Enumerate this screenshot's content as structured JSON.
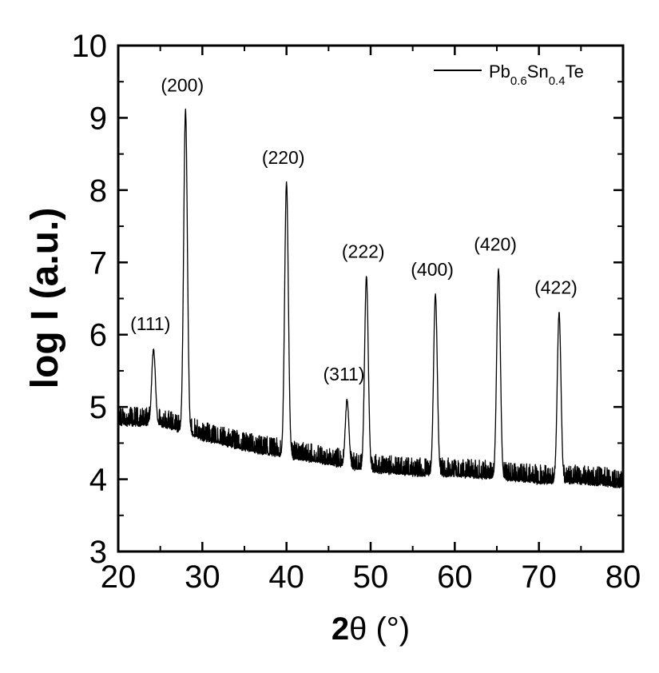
{
  "chart_data": {
    "type": "line",
    "xlabel": {
      "bold_part": "2",
      "rest": "θ (°)"
    },
    "ylabel": "log I (a.u.)",
    "xlim": [
      20,
      80
    ],
    "ylim": [
      3,
      10
    ],
    "x_ticks": [
      "20",
      "30",
      "40",
      "50",
      "60",
      "70",
      "80"
    ],
    "y_ticks": [
      "3",
      "4",
      "5",
      "6",
      "7",
      "8",
      "9",
      "10"
    ],
    "grid": false,
    "legend": {
      "position": "top-right",
      "entry": {
        "base1": "Pb",
        "sub1": "0.6",
        "base2": "Sn",
        "sub2": "0.4",
        "base3": "Te"
      }
    },
    "baseline": [
      [
        20,
        4.75
      ],
      [
        25,
        4.75
      ],
      [
        30,
        4.55
      ],
      [
        35,
        4.4
      ],
      [
        40,
        4.3
      ],
      [
        45,
        4.2
      ],
      [
        50,
        4.1
      ],
      [
        55,
        4.05
      ],
      [
        60,
        4.05
      ],
      [
        65,
        4.0
      ],
      [
        70,
        3.95
      ],
      [
        75,
        3.95
      ],
      [
        80,
        3.9
      ]
    ],
    "peaks": [
      {
        "label": "(111)",
        "x": 24.2,
        "y": 5.8
      },
      {
        "label": "(200)",
        "x": 28.0,
        "y": 9.1
      },
      {
        "label": "(220)",
        "x": 40.0,
        "y": 8.1
      },
      {
        "label": "(311)",
        "x": 47.2,
        "y": 5.1
      },
      {
        "label": "(222)",
        "x": 49.5,
        "y": 6.8
      },
      {
        "label": "(400)",
        "x": 57.7,
        "y": 6.55
      },
      {
        "label": "(420)",
        "x": 65.2,
        "y": 6.9
      },
      {
        "label": "(422)",
        "x": 72.4,
        "y": 6.3
      }
    ],
    "noise_amplitude": 0.25
  }
}
